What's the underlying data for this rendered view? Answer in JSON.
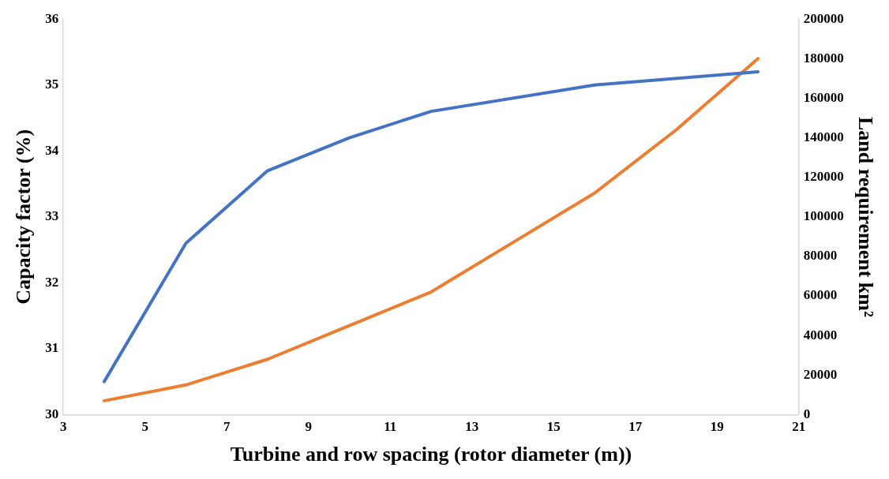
{
  "chart_data": {
    "type": "line",
    "xlabel": "Turbine and row spacing (rotor diameter (m))",
    "ylabel": "Capacity factor (%)",
    "y2label": "Land requirement km²",
    "xlim": [
      3,
      21
    ],
    "xticks": [
      3,
      5,
      7,
      9,
      11,
      13,
      15,
      17,
      19,
      21
    ],
    "ylim": [
      30,
      36
    ],
    "yticks": [
      30,
      31,
      32,
      33,
      34,
      35,
      36
    ],
    "y2lim": [
      0,
      200000
    ],
    "y2ticks": [
      0,
      20000,
      40000,
      60000,
      80000,
      100000,
      120000,
      140000,
      160000,
      180000,
      200000
    ],
    "grid": false,
    "legend": false,
    "marker": "none",
    "line_style": "solid",
    "series": [
      {
        "color": "#4472c4",
        "x": [
          4,
          6,
          8,
          10,
          12,
          16,
          20
        ],
        "values": [
          30.5,
          32.6,
          33.7,
          34.2,
          34.6,
          35.0,
          35.2
        ]
      },
      {
        "color": "#ed7d31",
        "axis": "y2",
        "x": [
          4,
          6,
          8,
          10,
          12,
          14,
          16,
          18,
          20
        ],
        "values": [
          7000,
          15000,
          28000,
          45000,
          62000,
          87000,
          112000,
          144000,
          180000
        ]
      }
    ]
  }
}
